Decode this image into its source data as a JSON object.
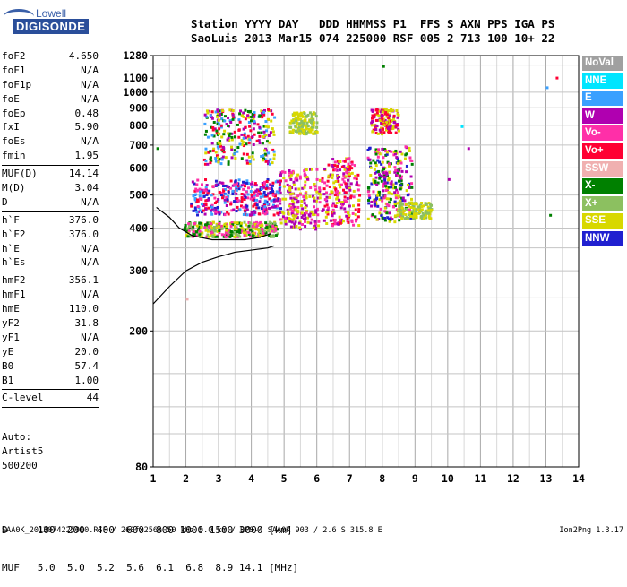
{
  "logo": {
    "line1": "Lowell",
    "line2": "DIGISONDE"
  },
  "header": {
    "labels": "Station YYYY DAY   DDD HHMMSS P1  FFS S AXN PPS IGA PS",
    "values": "SaoLuis 2013 Mar15 074 225000 RSF 005 2 713 100 10+ 22"
  },
  "params_group1": [
    {
      "name": "foF2",
      "value": "4.650"
    },
    {
      "name": "foF1",
      "value": "N/A"
    },
    {
      "name": "foF1p",
      "value": "N/A"
    },
    {
      "name": "foE",
      "value": "N/A"
    },
    {
      "name": "foEp",
      "value": "0.48"
    },
    {
      "name": "fxI",
      "value": "5.90"
    },
    {
      "name": "foEs",
      "value": "N/A"
    },
    {
      "name": "fmin",
      "value": "1.95"
    }
  ],
  "params_group2": [
    {
      "name": "MUF(D)",
      "value": "14.14"
    },
    {
      "name": "M(D)",
      "value": "3.04"
    },
    {
      "name": "D",
      "value": "N/A"
    }
  ],
  "params_group3": [
    {
      "name": "h`F",
      "value": "376.0"
    },
    {
      "name": "h`F2",
      "value": "376.0"
    },
    {
      "name": "h`E",
      "value": "N/A"
    },
    {
      "name": "h`Es",
      "value": "N/A"
    }
  ],
  "params_group4": [
    {
      "name": "hmF2",
      "value": "356.1"
    },
    {
      "name": "hmF1",
      "value": "N/A"
    },
    {
      "name": "hmE",
      "value": "110.0"
    },
    {
      "name": "yF2",
      "value": "31.8"
    },
    {
      "name": "yF1",
      "value": "N/A"
    },
    {
      "name": "yE",
      "value": "20.0"
    },
    {
      "name": "B0",
      "value": "57.4"
    },
    {
      "name": "B1",
      "value": "1.00"
    }
  ],
  "params_group5": [
    {
      "name": "C-level",
      "value": "44"
    }
  ],
  "auto": {
    "line1": "Auto:",
    "line2": "Artist5",
    "line3": "500200"
  },
  "legend": [
    {
      "label": "NoVal",
      "color": "#a0a0a0"
    },
    {
      "label": "NNE",
      "color": "#00e5ff"
    },
    {
      "label": "E",
      "color": "#3aa0ff"
    },
    {
      "label": "W",
      "color": "#b000b0"
    },
    {
      "label": "Vo-",
      "color": "#ff2fa8"
    },
    {
      "label": "Vo+",
      "color": "#ff0033"
    },
    {
      "label": "SSW",
      "color": "#f0b0b0"
    },
    {
      "label": "X-",
      "color": "#008000"
    },
    {
      "label": "X+",
      "color": "#8cc060"
    },
    {
      "label": "SSE",
      "color": "#d8d800"
    },
    {
      "label": "NNW",
      "color": "#2020d0"
    }
  ],
  "footer": {
    "d_row": "D     100  200  400  600  800 1000 1500 3000 [km]",
    "muf_row": "MUF   5.0  5.0  5.2  5.6  6.1  6.8  8.9 14.1 [MHz]",
    "file_line": "SAA0K_2013074225000.RSF / 260fx256h 50 kHz 5.0 km / DPS-4 SAA0K 903 / 2.6 S 315.8 E",
    "version": "Ion2Png 1.3.17"
  },
  "chart_data": {
    "type": "scatter",
    "title": "",
    "xlabel": "",
    "ylabel": "",
    "xlim": [
      1,
      14
    ],
    "ylim": [
      80,
      1280
    ],
    "y_scale": "log",
    "grid": true,
    "x_ticks": [
      "1",
      "2",
      "3",
      "4",
      "5",
      "6",
      "7",
      "8",
      "9",
      "10",
      "11",
      "12",
      "13",
      "14"
    ],
    "y_ticks": [
      {
        "value": 1280,
        "label": "1280"
      },
      {
        "value": 1100,
        "label": "1100"
      },
      {
        "value": 1000,
        "label": "1000"
      },
      {
        "value": 900,
        "label": "900"
      },
      {
        "value": 800,
        "label": "800"
      },
      {
        "value": 700,
        "label": "700"
      },
      {
        "value": 600,
        "label": "600"
      },
      {
        "value": 500,
        "label": "500"
      },
      {
        "value": 400,
        "label": "400"
      },
      {
        "value": 300,
        "label": "300"
      },
      {
        "value": 200,
        "label": "200"
      },
      {
        "value": 80,
        "label": "80"
      }
    ],
    "y_minor_grid": [
      1200,
      1000,
      900,
      800,
      700,
      600,
      500,
      450,
      400,
      350,
      300,
      250,
      200,
      150,
      120,
      100
    ],
    "echo_clusters": [
      {
        "x": [
          2.4,
          3.0,
          3.6,
          4.2,
          4.6
        ],
        "y_range": [
          440,
          560
        ],
        "colors": [
          "W",
          "Vo-",
          "Vo+",
          "NNW",
          "E"
        ]
      },
      {
        "x": [
          2.2,
          2.8,
          3.4,
          4.0,
          4.5
        ],
        "y_range": [
          380,
          420
        ],
        "colors": [
          "X-",
          "SSE",
          "X+",
          "Vo-"
        ]
      },
      {
        "x": [
          2.8,
          3.2,
          3.8,
          4.4
        ],
        "y_range": [
          620,
          900
        ],
        "colors": [
          "W",
          "Vo+",
          "SSE",
          "E",
          "X-"
        ]
      },
      {
        "x": [
          5.1,
          5.4,
          5.8
        ],
        "y_range": [
          400,
          600
        ],
        "colors": [
          "W",
          "Vo-",
          "SSE"
        ]
      },
      {
        "x": [
          5.4,
          5.7
        ],
        "y_range": [
          760,
          880
        ],
        "colors": [
          "SSE",
          "X+"
        ]
      },
      {
        "x": [
          6.4,
          6.7,
          7.0
        ],
        "y_range": [
          410,
          650
        ],
        "colors": [
          "W",
          "Vo-",
          "Vo+",
          "SSE"
        ]
      },
      {
        "x": [
          7.8,
          8.0,
          8.3,
          8.6
        ],
        "y_range": [
          420,
          700
        ],
        "colors": [
          "Vo-",
          "W",
          "NNW",
          "SSE",
          "X-"
        ]
      },
      {
        "x": [
          7.9,
          8.2
        ],
        "y_range": [
          760,
          900
        ],
        "colors": [
          "Vo+",
          "W",
          "SSE"
        ]
      },
      {
        "x": [
          8.7,
          9.2
        ],
        "y_range": [
          430,
          480
        ],
        "colors": [
          "SSE",
          "X+"
        ]
      }
    ],
    "isolated_echoes": [
      {
        "x": 1.1,
        "y": 690,
        "color": "X-"
      },
      {
        "x": 8.0,
        "y": 1200,
        "color": "X-"
      },
      {
        "x": 10.0,
        "y": 560,
        "color": "W"
      },
      {
        "x": 10.4,
        "y": 800,
        "color": "NNE"
      },
      {
        "x": 10.6,
        "y": 690,
        "color": "W"
      },
      {
        "x": 13.0,
        "y": 1040,
        "color": "E"
      },
      {
        "x": 13.3,
        "y": 1110,
        "color": "Vo+"
      },
      {
        "x": 13.1,
        "y": 440,
        "color": "X-"
      },
      {
        "x": 2.0,
        "y": 250,
        "color": "SSW"
      }
    ],
    "trace_upper": {
      "x": [
        1.1,
        1.5,
        1.8,
        2.2,
        2.8,
        3.3,
        3.8,
        4.2,
        4.6
      ],
      "y": [
        460,
        430,
        400,
        380,
        370,
        370,
        370,
        375,
        385
      ]
    },
    "trace_lower": {
      "x": [
        1.0,
        1.5,
        2.0,
        2.5,
        3.0,
        3.5,
        4.0,
        4.5,
        4.7
      ],
      "y": [
        240,
        270,
        300,
        318,
        330,
        340,
        345,
        350,
        355
      ]
    }
  }
}
